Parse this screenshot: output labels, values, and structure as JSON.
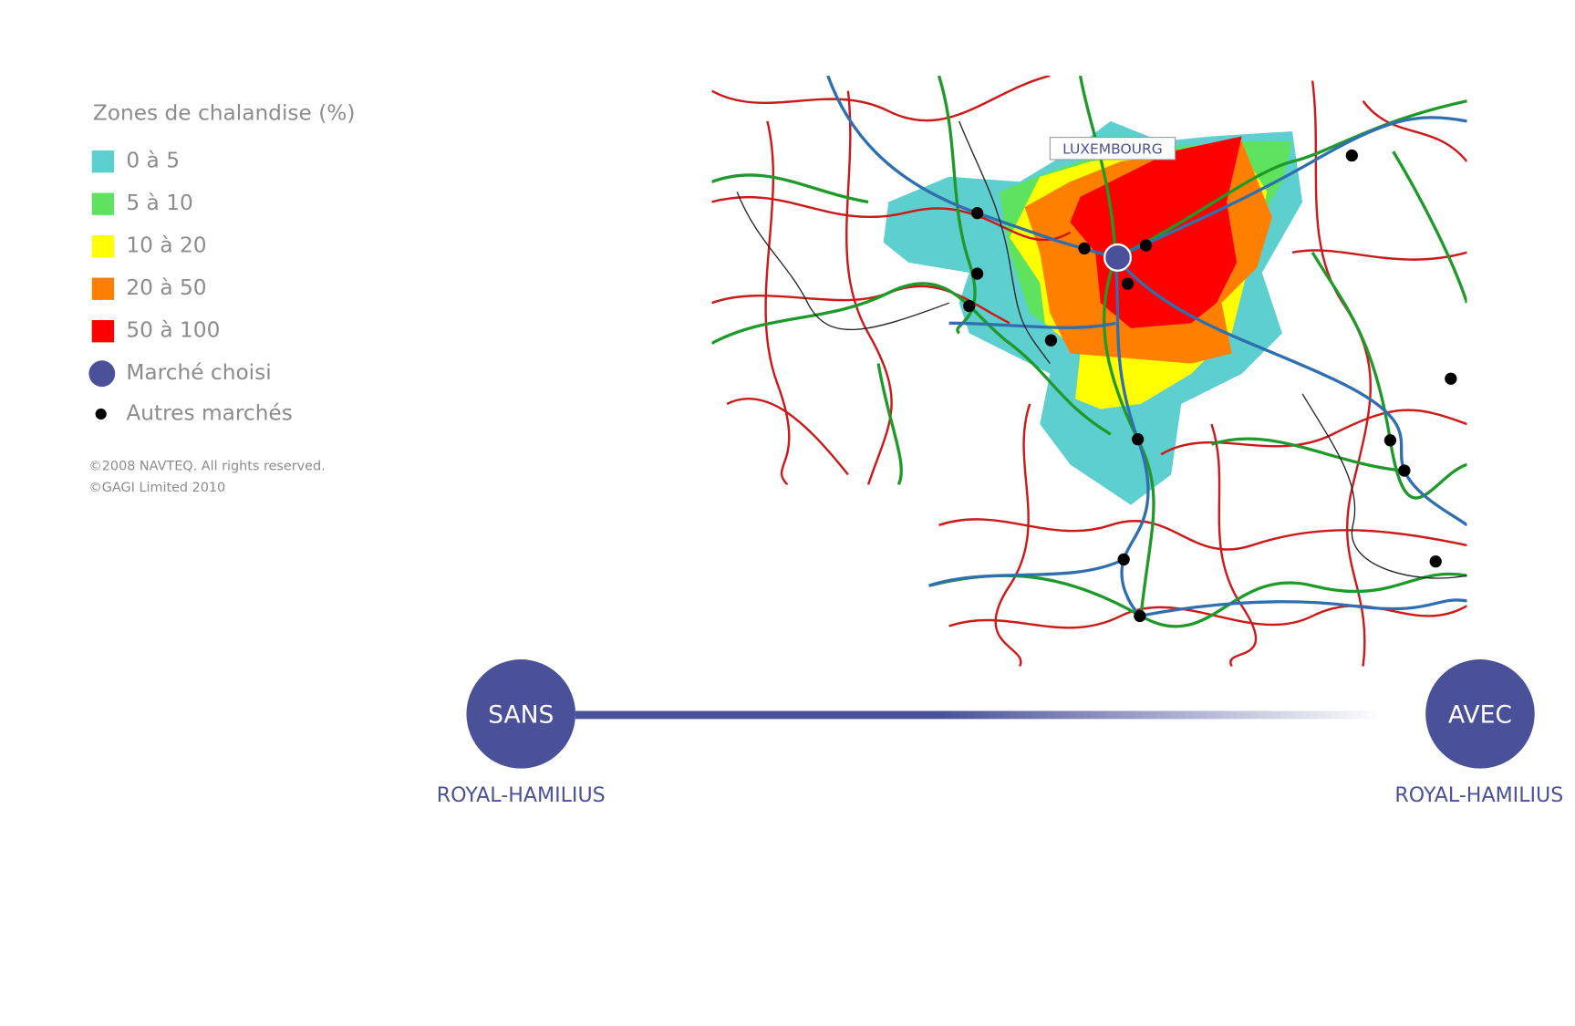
{
  "legend": {
    "title": "Zones de chalandise (%)",
    "items": [
      {
        "label": "0 à 5",
        "color": "#5ecfcf"
      },
      {
        "label": "5 à 10",
        "color": "#5fe35f"
      },
      {
        "label": "10 à 20",
        "color": "#ffff00"
      },
      {
        "label": "20 à 50",
        "color": "#ff8000"
      },
      {
        "label": "50 à 100",
        "color": "#ff0000"
      }
    ],
    "markers": [
      {
        "label": "Marché choisi"
      },
      {
        "label": "Autres marchés"
      }
    ],
    "credits": [
      "©2008 NAVTEQ. All rights reserved.",
      "©GAGI Limited 2010"
    ]
  },
  "map": {
    "label": "LUXEMBOURG"
  },
  "slider": {
    "start": {
      "button": "SANS",
      "caption": "ROYAL-HAMILIUS"
    },
    "end": {
      "button": "AVEC",
      "caption": "ROYAL-HAMILIUS"
    }
  }
}
